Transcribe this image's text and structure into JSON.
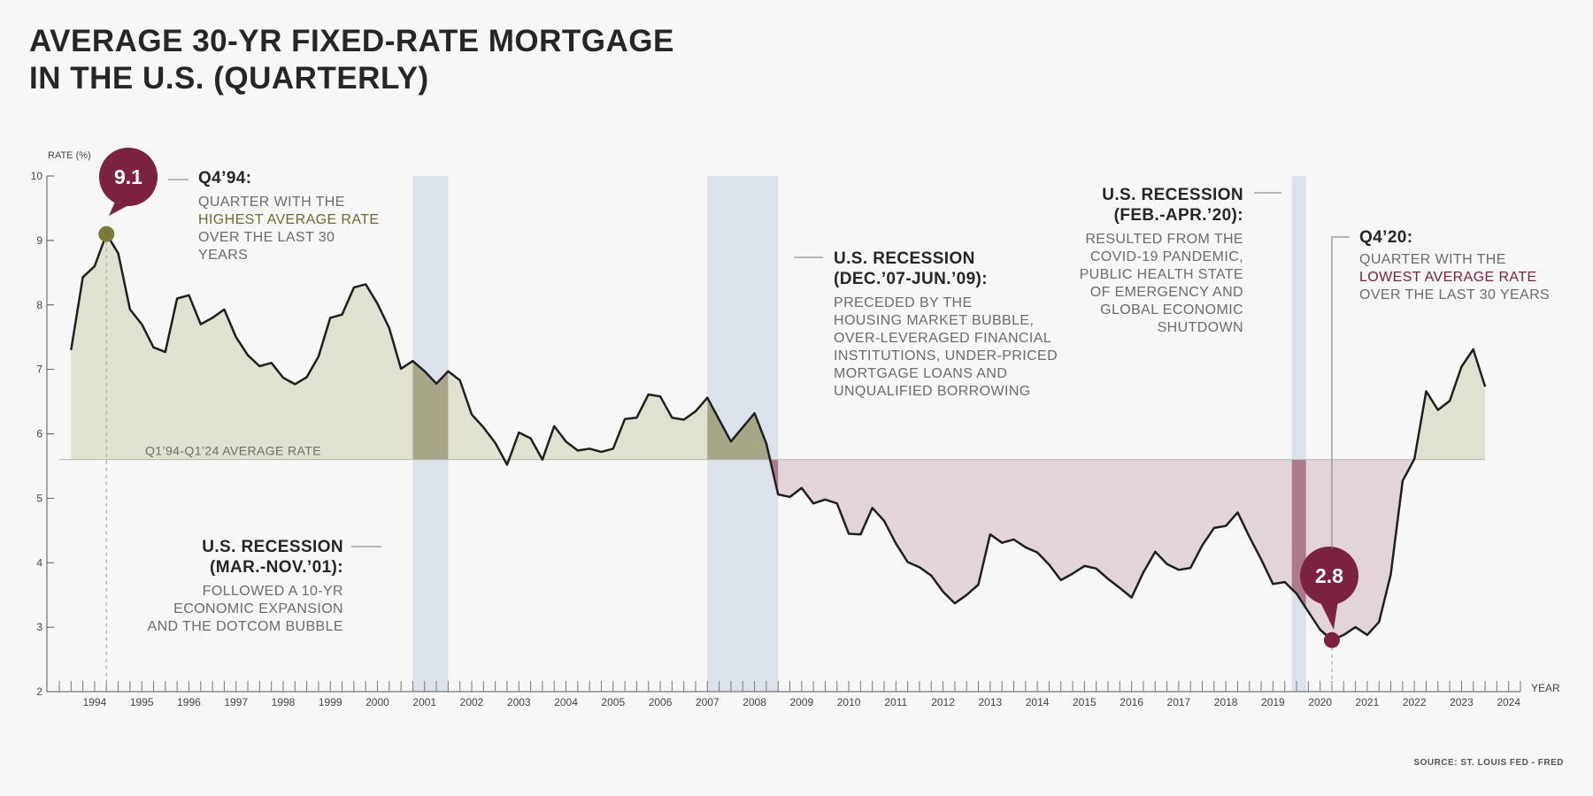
{
  "title_line1": "AVERAGE 30-YR FIXED-RATE MORTGAGE",
  "title_line2": "IN THE U.S. (QUARTERLY)",
  "source": "SOURCE: ST. LOUIS FED - FRED",
  "colors": {
    "line": "#1f1f1f",
    "above_fill": "#e1e1d2",
    "below_fill": "#e3d3da",
    "recession_band": "#dbe2ea",
    "recession_above": "#a8a688",
    "recession_below": "#ad7a8b",
    "marker_high": "#7a7a3a",
    "marker_low": "#7b2141",
    "highlight_olive": "#6d6a30",
    "highlight_wine": "#7b2141"
  },
  "annotations": {
    "high": {
      "bubble": "9.1",
      "head": "Q4’94:",
      "body_pre": "QUARTER WITH THE",
      "body_hl": "HIGHEST AVERAGE RATE",
      "body_post": "OVER THE LAST 30 YEARS"
    },
    "low": {
      "bubble": "2.8",
      "head": "Q4’20:",
      "body_pre": "QUARTER WITH THE",
      "body_hl": "LOWEST AVERAGE RATE",
      "body_post": "OVER THE LAST 30 YEARS"
    },
    "rec2001": {
      "head1": "U.S. RECESSION",
      "head2": "(MAR.-NOV.’01):",
      "body": [
        "FOLLOWED A 10-YR",
        "ECONOMIC EXPANSION",
        "AND THE DOTCOM BUBBLE"
      ]
    },
    "rec2008": {
      "head1": "U.S. RECESSION",
      "head2": "(DEC.’07-JUN.’09):",
      "body": [
        "PRECEDED BY THE",
        "HOUSING MARKET BUBBLE,",
        "OVER-LEVERAGED FINANCIAL",
        "INSTITUTIONS, UNDER-PRICED",
        "MORTGAGE LOANS AND",
        "UNQUALIFIED BORROWING"
      ]
    },
    "rec2020": {
      "head1": "U.S. RECESSION",
      "head2": "(FEB.-APR.’20):",
      "body": [
        "RESULTED FROM THE",
        "COVID-19 PANDEMIC,",
        "PUBLIC HEALTH STATE",
        "OF EMERGENCY AND",
        "GLOBAL ECONOMIC",
        "SHUTDOWN"
      ]
    }
  },
  "chart_data": {
    "type": "area",
    "ylabel": "RATE (%)",
    "xlabel": "YEAR",
    "ylim": [
      2,
      10
    ],
    "yticks": [
      2,
      3,
      4,
      5,
      6,
      7,
      8,
      9,
      10
    ],
    "xlim": [
      1993.75,
      2024.75
    ],
    "xtick_labels": [
      "1994",
      "1995",
      "1996",
      "1997",
      "1998",
      "1999",
      "2000",
      "2001",
      "2002",
      "2003",
      "2004",
      "2005",
      "2006",
      "2007",
      "2008",
      "2009",
      "2010",
      "2011",
      "2012",
      "2013",
      "2014",
      "2015",
      "2016",
      "2017",
      "2018",
      "2019",
      "2020",
      "2021",
      "2022",
      "2023",
      "2024"
    ],
    "average_rate": 5.6,
    "average_label": "Q1’94-Q1’24 AVERAGE RATE",
    "recessions": [
      {
        "start": 2001.25,
        "end": 2002.0
      },
      {
        "start": 2007.5,
        "end": 2009.0
      },
      {
        "start": 2019.9,
        "end": 2020.2
      }
    ],
    "highest": {
      "x": 1994.75,
      "y": 9.1,
      "label": "Q4’94"
    },
    "lowest": {
      "x": 2020.75,
      "y": 2.8,
      "label": "Q4’20"
    },
    "x_start": 1994.0,
    "x_step": 0.25,
    "values": [
      7.3,
      8.43,
      8.6,
      9.1,
      8.8,
      7.93,
      7.7,
      7.34,
      7.27,
      8.1,
      8.15,
      7.7,
      7.8,
      7.93,
      7.5,
      7.22,
      7.05,
      7.1,
      6.87,
      6.77,
      6.88,
      7.2,
      7.8,
      7.85,
      8.27,
      8.32,
      8.02,
      7.64,
      7.01,
      7.13,
      6.97,
      6.78,
      6.97,
      6.83,
      6.3,
      6.1,
      5.86,
      5.52,
      6.02,
      5.93,
      5.6,
      6.12,
      5.88,
      5.74,
      5.77,
      5.72,
      5.77,
      6.23,
      6.25,
      6.61,
      6.58,
      6.25,
      6.22,
      6.35,
      6.56,
      6.22,
      5.88,
      6.1,
      6.32,
      5.85,
      5.06,
      5.02,
      5.16,
      4.92,
      4.98,
      4.92,
      4.45,
      4.44,
      4.85,
      4.65,
      4.3,
      4.01,
      3.93,
      3.8,
      3.55,
      3.37,
      3.5,
      3.66,
      4.44,
      4.31,
      4.36,
      4.24,
      4.16,
      3.97,
      3.73,
      3.83,
      3.95,
      3.91,
      3.75,
      3.61,
      3.46,
      3.85,
      4.17,
      3.98,
      3.89,
      3.92,
      4.27,
      4.54,
      4.57,
      4.78,
      4.4,
      4.05,
      3.67,
      3.7,
      3.52,
      3.24,
      2.96,
      2.8,
      2.88,
      3.0,
      2.88,
      3.08,
      3.82,
      5.27,
      5.61,
      6.66,
      6.37,
      6.51,
      7.04,
      7.31,
      6.73
    ]
  }
}
